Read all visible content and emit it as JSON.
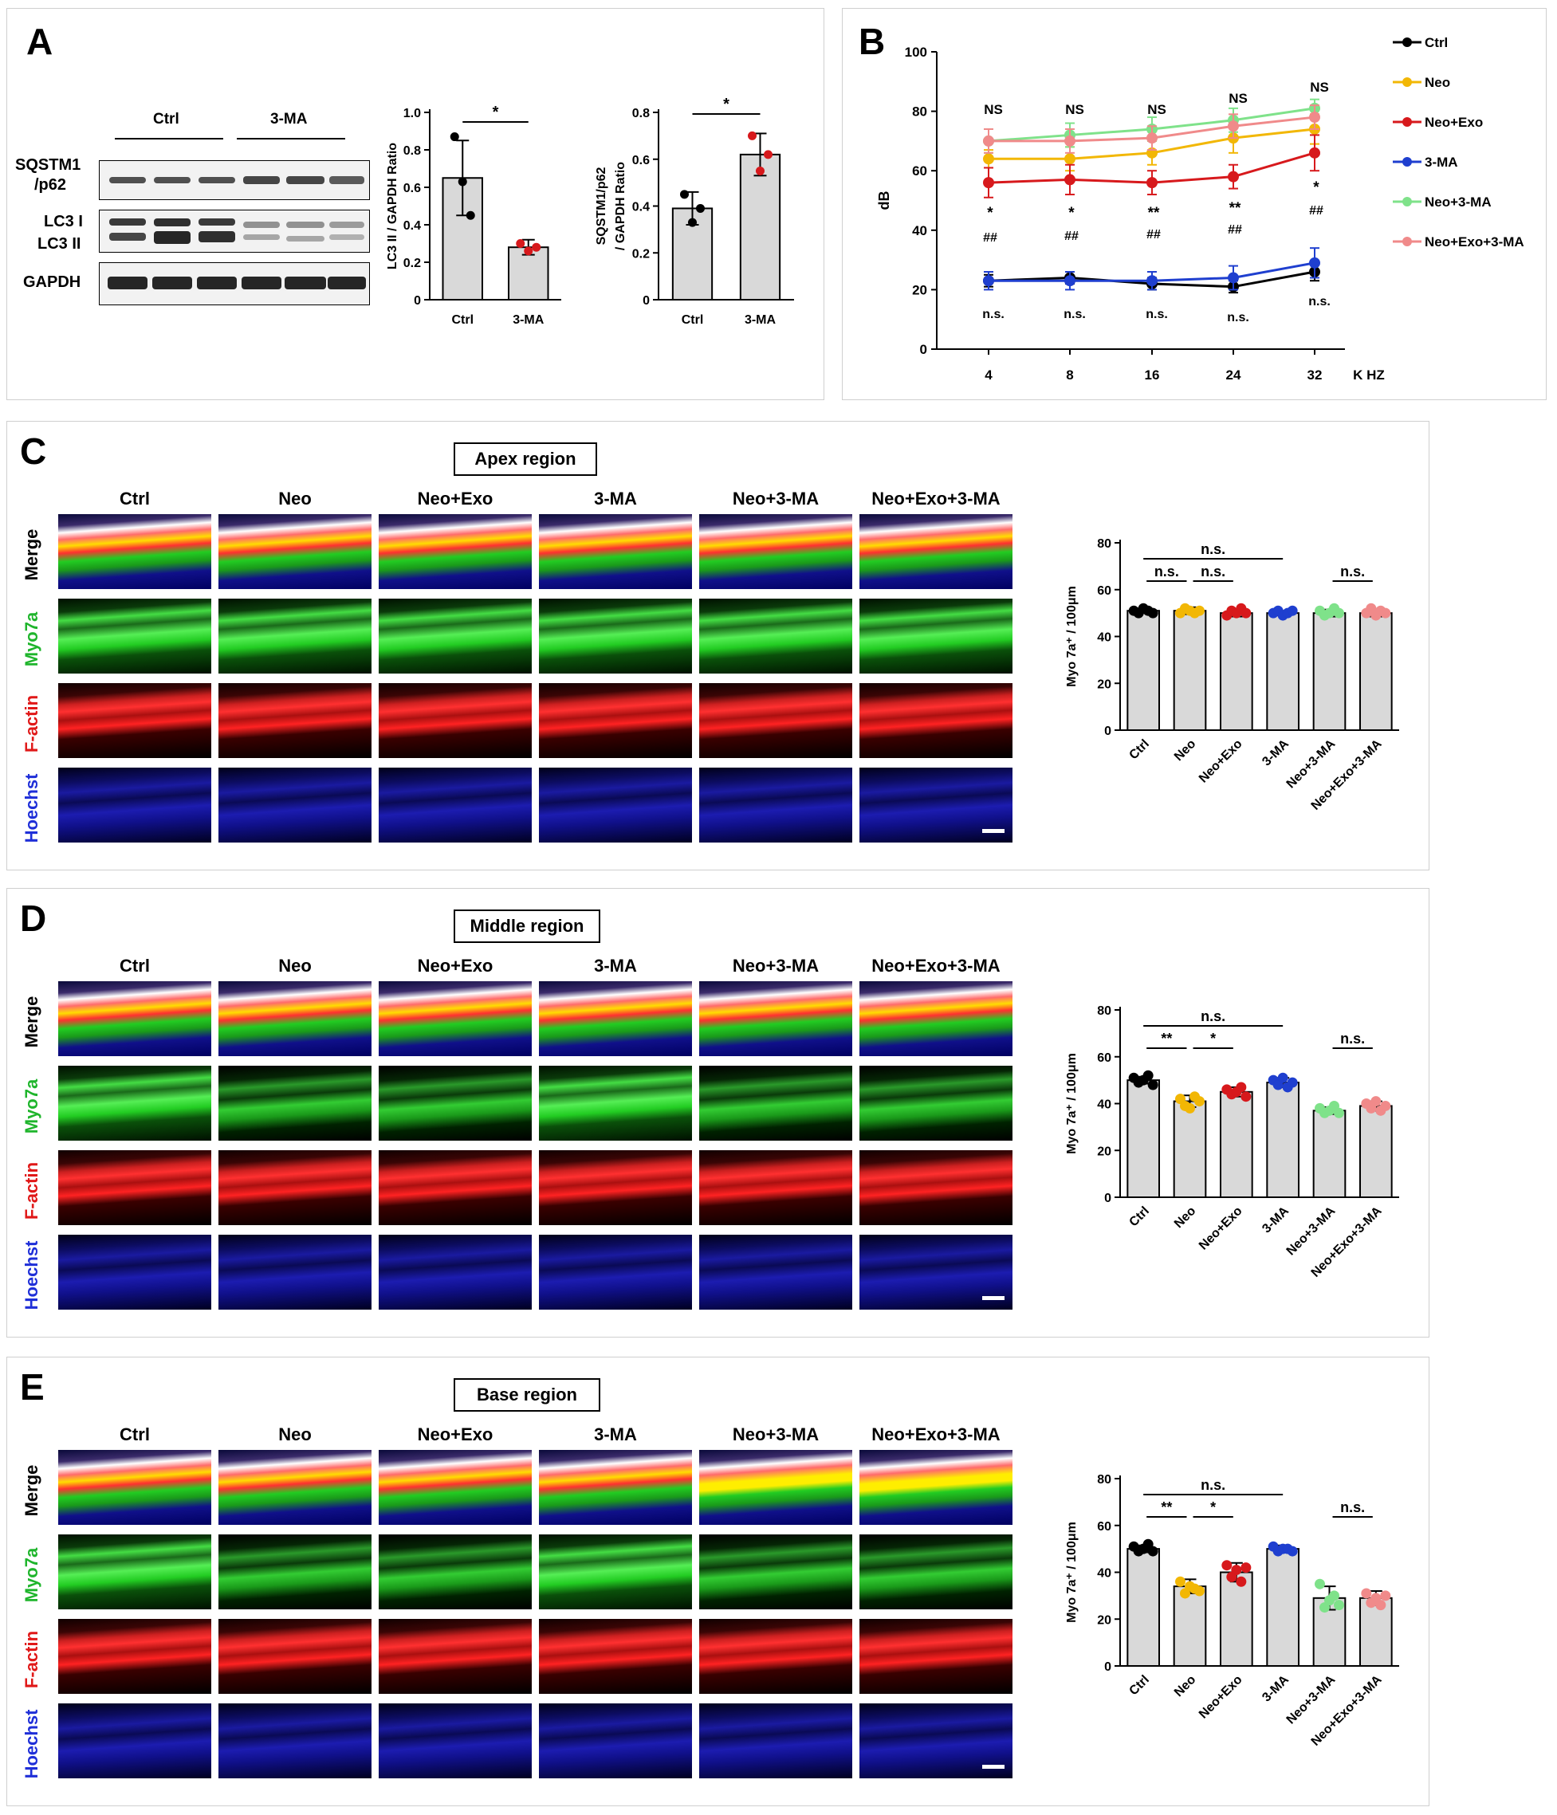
{
  "panel_labels": {
    "a": "A",
    "b": "B",
    "c": "C",
    "d": "D",
    "e": "E"
  },
  "colors": {
    "ctrl": "#000000",
    "neo": "#f2b705",
    "neo_exo": "#d7191c",
    "ma": "#1f3fcf",
    "neo_ma": "#7fe28a",
    "neo_exo_ma": "#f08a8a",
    "bar": "#d9d9d9"
  },
  "blot": {
    "group_labels": [
      "Ctrl",
      "3-MA"
    ],
    "row_labels": {
      "p62_line1": "SQSTM1",
      "p62_line2": "/p62",
      "lc3i": "LC3 I",
      "lc3ii": "LC3 II",
      "gapdh": "GAPDH"
    }
  },
  "groups": [
    "Ctrl",
    "Neo",
    "Neo+Exo",
    "3-MA",
    "Neo+3-MA",
    "Neo+Exo+3-MA"
  ],
  "row_channels": [
    "Merge",
    "Myo7a",
    "F-actin",
    "Hoechst"
  ],
  "regions": {
    "c": "Apex region",
    "d": "Middle region",
    "e": "Base region"
  },
  "chart_data": [
    {
      "id": "lc3-ratio",
      "type": "bar",
      "categories": [
        "Ctrl",
        "3-MA"
      ],
      "values": [
        0.65,
        0.28
      ],
      "errors": [
        0.2,
        0.04
      ],
      "points": [
        [
          0.87,
          0.63,
          0.45
        ],
        [
          0.3,
          0.26,
          0.28
        ]
      ],
      "ylabel": "LC3 II / GAPDH Ratio",
      "ylim": [
        0,
        1.0
      ],
      "yticks": [
        "0",
        "0.2",
        "0.4",
        "0.6",
        "0.8",
        "1.0"
      ],
      "significance": [
        {
          "from": 0,
          "to": 1,
          "label": "*"
        }
      ]
    },
    {
      "id": "p62-ratio",
      "type": "bar",
      "categories": [
        "Ctrl",
        "3-MA"
      ],
      "values": [
        0.39,
        0.62
      ],
      "errors": [
        0.07,
        0.09
      ],
      "points": [
        [
          0.45,
          0.33,
          0.39
        ],
        [
          0.7,
          0.55,
          0.62
        ]
      ],
      "ylabel_line1": "SQSTM1/p62",
      "ylabel_line2": "/ GAPDH Ratio",
      "ylim": [
        0,
        0.8
      ],
      "yticks": [
        "0",
        "0.2",
        "0.4",
        "0.6",
        "0.8"
      ],
      "significance": [
        {
          "from": 0,
          "to": 1,
          "label": "*"
        }
      ]
    },
    {
      "id": "abr-threshold",
      "type": "line",
      "x": [
        "4",
        "8",
        "16",
        "24",
        "32"
      ],
      "xlabel": "K HZ",
      "ylabel": "dB",
      "ylim": [
        0,
        100
      ],
      "yticks": [
        "0",
        "20",
        "40",
        "60",
        "80",
        "100"
      ],
      "legend_position": "right",
      "series": [
        {
          "name": "Ctrl",
          "values": [
            23,
            24,
            22,
            21,
            26
          ],
          "errors": [
            2,
            2,
            2,
            2,
            3
          ]
        },
        {
          "name": "Neo",
          "values": [
            64,
            64,
            66,
            71,
            74
          ],
          "errors": [
            3,
            4,
            4,
            5,
            5
          ]
        },
        {
          "name": "Neo+Exo",
          "values": [
            56,
            57,
            56,
            58,
            66
          ],
          "errors": [
            5,
            5,
            4,
            4,
            6
          ]
        },
        {
          "name": "3-MA",
          "values": [
            23,
            23,
            23,
            24,
            29
          ],
          "errors": [
            3,
            3,
            3,
            4,
            5
          ]
        },
        {
          "name": "Neo+3-MA",
          "values": [
            70,
            72,
            74,
            77,
            81
          ],
          "errors": [
            4,
            4,
            4,
            4,
            3
          ]
        },
        {
          "name": "Neo+Exo+3-MA",
          "values": [
            70,
            70,
            71,
            75,
            78
          ],
          "errors": [
            4,
            4,
            4,
            4,
            4
          ]
        }
      ],
      "annotations_top": [
        "NS",
        "NS",
        "NS",
        "NS",
        "NS"
      ],
      "annotations_star": [
        "*",
        "*",
        "**",
        "**",
        "*"
      ],
      "annotations_hash": [
        "##",
        "##",
        "##",
        "##",
        "##"
      ],
      "annotations_bottom": [
        "n.s.",
        "n.s.",
        "n.s.",
        "n.s.",
        "n.s."
      ]
    },
    {
      "id": "apex-count",
      "type": "bar",
      "categories": [
        "Ctrl",
        "Neo",
        "Neo+Exo",
        "3-MA",
        "Neo+3-MA",
        "Neo+Exo+3-MA"
      ],
      "values": [
        51,
        51,
        50,
        50,
        50,
        50
      ],
      "errors": [
        1,
        1.5,
        1.5,
        1,
        1.5,
        1.5
      ],
      "points": [
        [
          51,
          50,
          52,
          51,
          50
        ],
        [
          50,
          52,
          51,
          50,
          51
        ],
        [
          49,
          51,
          50,
          52,
          50
        ],
        [
          50,
          51,
          49,
          50,
          51
        ],
        [
          51,
          49,
          50,
          52,
          50
        ],
        [
          50,
          52,
          49,
          51,
          50
        ]
      ],
      "ylabel": "Myo 7a⁺ / 100μm",
      "ylim": [
        0,
        80
      ],
      "yticks": [
        "0",
        "20",
        "40",
        "60",
        "80"
      ],
      "significance": [
        {
          "from": 0,
          "to": 3,
          "label": "n.s.",
          "level": 2
        },
        {
          "from": 0,
          "to": 1,
          "label": "n.s.",
          "level": 1
        },
        {
          "from": 1,
          "to": 2,
          "label": "n.s.",
          "level": 1
        },
        {
          "from": 4,
          "to": 5,
          "label": "n.s.",
          "level": 1
        }
      ]
    },
    {
      "id": "middle-count",
      "type": "bar",
      "categories": [
        "Ctrl",
        "Neo",
        "Neo+Exo",
        "3-MA",
        "Neo+3-MA",
        "Neo+Exo+3-MA"
      ],
      "values": [
        50,
        41,
        45,
        49,
        37,
        39
      ],
      "errors": [
        1.5,
        2.5,
        2,
        2,
        1.5,
        2
      ],
      "points": [
        [
          51,
          49,
          50,
          52,
          48
        ],
        [
          42,
          39,
          38,
          43,
          41
        ],
        [
          46,
          44,
          45,
          47,
          43
        ],
        [
          50,
          48,
          51,
          47,
          49
        ],
        [
          38,
          36,
          37,
          39,
          36
        ],
        [
          40,
          38,
          41,
          37,
          39
        ]
      ],
      "ylabel": "Myo 7a⁺ / 100μm",
      "ylim": [
        0,
        80
      ],
      "yticks": [
        "0",
        "20",
        "40",
        "60",
        "80"
      ],
      "significance": [
        {
          "from": 0,
          "to": 3,
          "label": "n.s.",
          "level": 2
        },
        {
          "from": 0,
          "to": 1,
          "label": "**",
          "level": 1
        },
        {
          "from": 1,
          "to": 2,
          "label": "*",
          "level": 1
        },
        {
          "from": 4,
          "to": 5,
          "label": "n.s.",
          "level": 1
        }
      ]
    },
    {
      "id": "base-count",
      "type": "bar",
      "categories": [
        "Ctrl",
        "Neo",
        "Neo+Exo",
        "3-MA",
        "Neo+3-MA",
        "Neo+Exo+3-MA"
      ],
      "values": [
        50,
        34,
        40,
        50,
        29,
        29
      ],
      "errors": [
        1.5,
        3,
        4,
        1.5,
        5,
        3
      ],
      "points": [
        [
          51,
          49,
          50,
          52,
          49
        ],
        [
          36,
          31,
          34,
          33,
          32
        ],
        [
          43,
          38,
          41,
          36,
          42
        ],
        [
          51,
          49,
          50,
          50,
          49
        ],
        [
          35,
          25,
          28,
          30,
          26
        ],
        [
          31,
          27,
          29,
          26,
          30
        ]
      ],
      "ylabel": "Myo 7a⁺ / 100μm",
      "ylim": [
        0,
        80
      ],
      "yticks": [
        "0",
        "20",
        "40",
        "60",
        "80"
      ],
      "significance": [
        {
          "from": 0,
          "to": 3,
          "label": "n.s.",
          "level": 2
        },
        {
          "from": 0,
          "to": 1,
          "label": "**",
          "level": 1
        },
        {
          "from": 1,
          "to": 2,
          "label": "*",
          "level": 1
        },
        {
          "from": 4,
          "to": 5,
          "label": "n.s.",
          "level": 1
        }
      ]
    }
  ]
}
